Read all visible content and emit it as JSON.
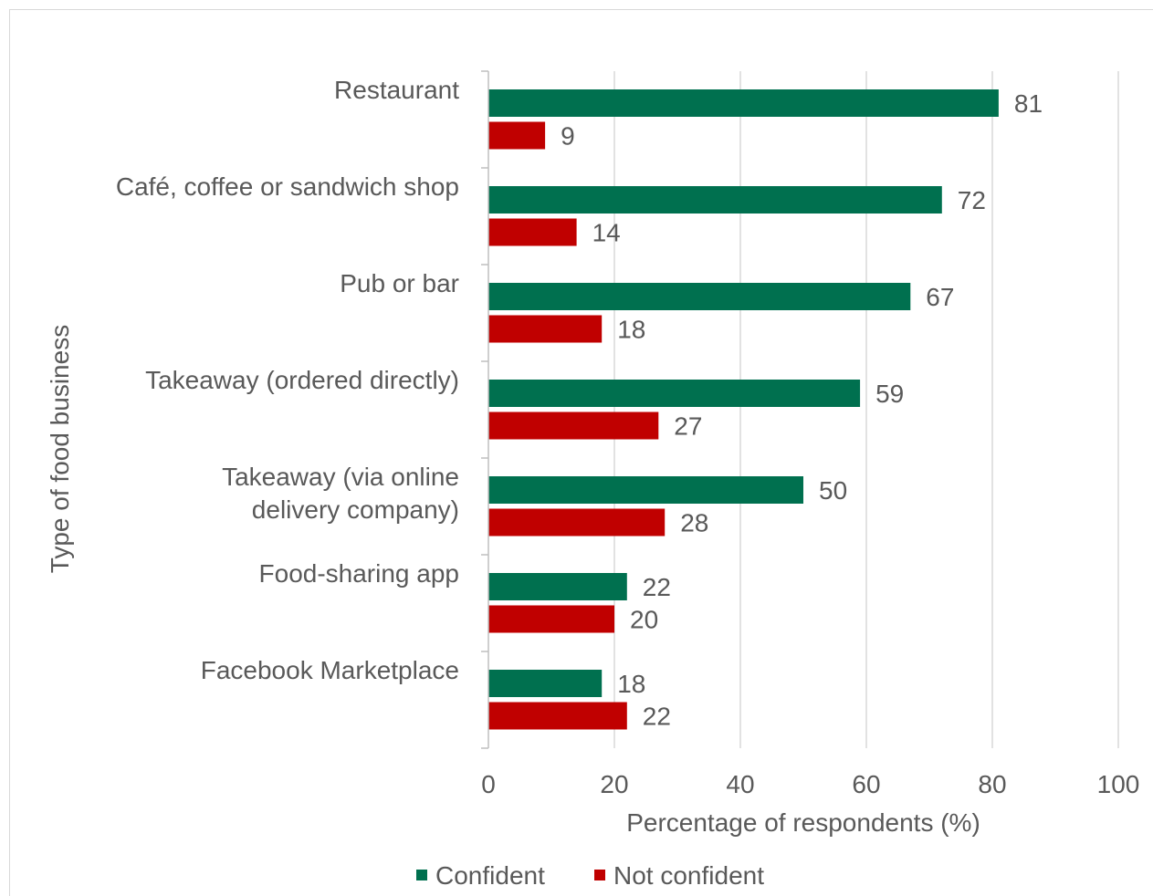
{
  "chart_data": {
    "type": "bar",
    "orientation": "horizontal",
    "categories": [
      [
        "Restaurant"
      ],
      [
        "Café, coffee or sandwich shop"
      ],
      [
        "Pub or bar"
      ],
      [
        "Takeaway (ordered directly)"
      ],
      [
        "Takeaway (via online",
        "delivery company)"
      ],
      [
        "Food-sharing app"
      ],
      [
        "Facebook Marketplace"
      ]
    ],
    "series": [
      {
        "name": "Confident",
        "color": "#00704f",
        "values": [
          81,
          72,
          67,
          59,
          50,
          22,
          18
        ]
      },
      {
        "name": "Not confident",
        "color": "#c00000",
        "values": [
          9,
          14,
          18,
          27,
          28,
          20,
          22
        ]
      }
    ],
    "xlabel": "Percentage of respondents (%)",
    "ylabel": "Type of food business",
    "xlim": [
      0,
      100
    ],
    "xticks": [
      0,
      20,
      40,
      60,
      80,
      100
    ],
    "grid": "vertical",
    "legend_position": "bottom"
  }
}
